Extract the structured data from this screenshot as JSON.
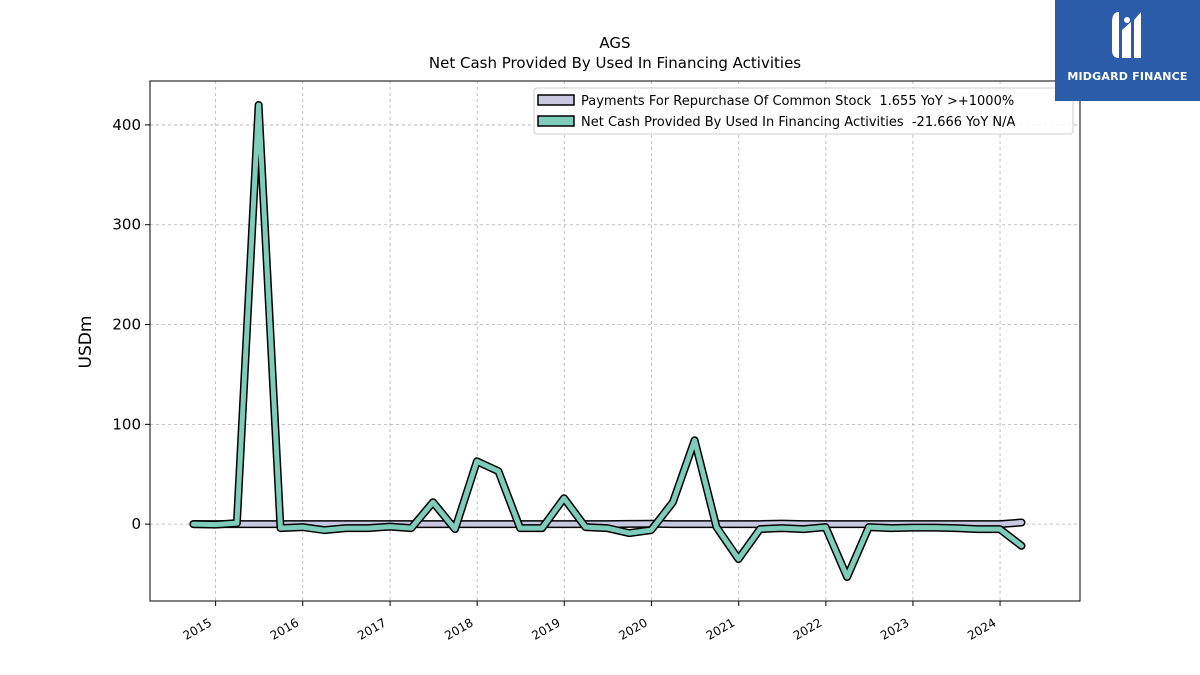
{
  "logo": {
    "text": "MIDGARD FINANCE",
    "color": "#2a5caa"
  },
  "chart_data": {
    "type": "line",
    "title": "AGS",
    "subtitle": "Net Cash Provided By Used In Financing Activities",
    "ylabel": "USDm",
    "xlabel": "",
    "ylim": [
      -77,
      444
    ],
    "yticks": [
      0,
      100,
      200,
      300,
      400
    ],
    "xticks": [
      "2015",
      "2016",
      "2017",
      "2018",
      "2019",
      "2020",
      "2021",
      "2022",
      "2023",
      "2024"
    ],
    "grid": true,
    "legend_position": "top-right",
    "series": [
      {
        "name": "Payments For Repurchase Of Common Stock",
        "legend": "Payments For Repurchase Of Common Stock  1.655 YoY >+1000%",
        "color": "#c8c8e0",
        "x": [
          "2014-09-30",
          "2014-12-31",
          "2015-03-31",
          "2015-06-30",
          "2015-09-30",
          "2015-12-31",
          "2016-03-31",
          "2016-06-30",
          "2016-09-30",
          "2016-12-31",
          "2017-03-31",
          "2017-06-30",
          "2017-09-30",
          "2017-12-31",
          "2018-03-31",
          "2018-06-30",
          "2018-09-30",
          "2018-12-31",
          "2019-03-31",
          "2019-06-30",
          "2019-09-30",
          "2019-12-31",
          "2020-03-31",
          "2020-06-30",
          "2020-09-30",
          "2020-12-31",
          "2021-03-31",
          "2021-06-30",
          "2021-09-30",
          "2021-12-31",
          "2022-03-31",
          "2022-06-30",
          "2022-09-30",
          "2022-12-31",
          "2023-03-31",
          "2023-06-30",
          "2023-09-30",
          "2023-12-31",
          "2024-03-31"
        ],
        "values": [
          0,
          0,
          0,
          0,
          0,
          0,
          0,
          0,
          0,
          0,
          0,
          0,
          0,
          0,
          0,
          0,
          0,
          0,
          0,
          0,
          0.2,
          0.3,
          0,
          0,
          0,
          0,
          0,
          0.5,
          0,
          0,
          0,
          0,
          0,
          0,
          0,
          0,
          0,
          0,
          1.655
        ]
      },
      {
        "name": "Net Cash Provided By Used In Financing Activities",
        "legend": "Net Cash Provided By Used In Financing Activities  -21.666 YoY N/A",
        "color": "#7ecdbb",
        "x": [
          "2014-09-30",
          "2014-12-31",
          "2015-03-31",
          "2015-06-30",
          "2015-09-30",
          "2015-12-31",
          "2016-03-31",
          "2016-06-30",
          "2016-09-30",
          "2016-12-31",
          "2017-03-31",
          "2017-06-30",
          "2017-09-30",
          "2017-12-31",
          "2018-03-31",
          "2018-06-30",
          "2018-09-30",
          "2018-12-31",
          "2019-03-31",
          "2019-06-30",
          "2019-09-30",
          "2019-12-31",
          "2020-03-31",
          "2020-06-30",
          "2020-09-30",
          "2020-12-31",
          "2021-03-31",
          "2021-06-30",
          "2021-09-30",
          "2021-12-31",
          "2022-03-31",
          "2022-06-30",
          "2022-09-30",
          "2022-12-31",
          "2023-03-31",
          "2023-06-30",
          "2023-09-30",
          "2023-12-31",
          "2024-03-31"
        ],
        "values": [
          0,
          -0.5,
          1,
          420,
          -4,
          -3,
          -6,
          -4,
          -4,
          -2.5,
          -4,
          22,
          -5,
          63,
          53,
          -4,
          -4,
          26,
          -3,
          -4,
          -9,
          -6,
          22,
          84,
          -3,
          -35,
          -5,
          -4,
          -5,
          -3,
          -53,
          -3,
          -4,
          -3.5,
          -3.5,
          -4,
          -5,
          -5,
          -21.666
        ]
      }
    ]
  }
}
